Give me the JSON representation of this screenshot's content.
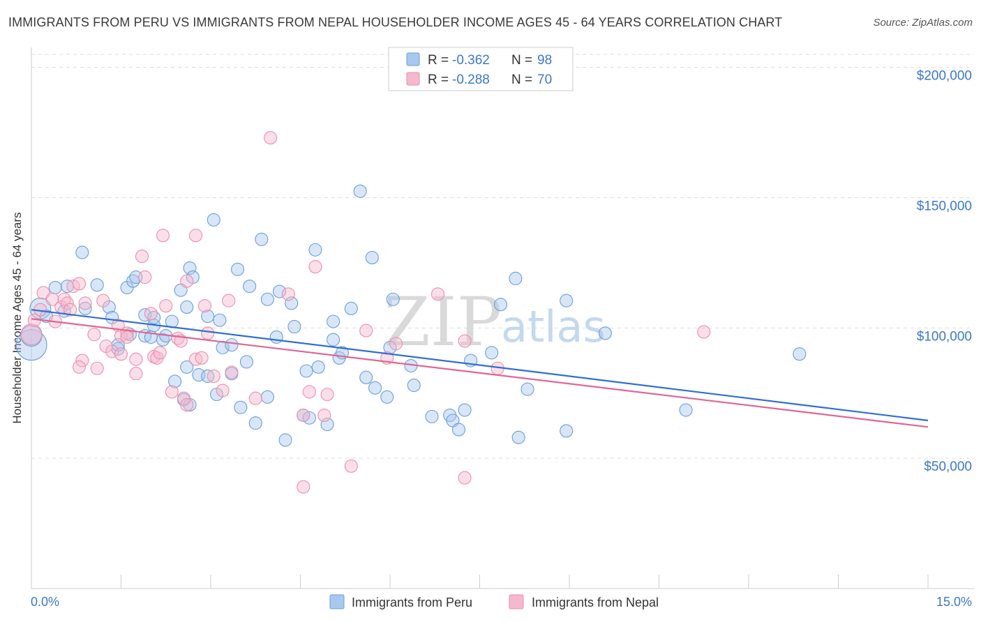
{
  "title": "IMMIGRANTS FROM PERU VS IMMIGRANTS FROM NEPAL HOUSEHOLDER INCOME AGES 45 - 64 YEARS CORRELATION CHART",
  "source": "Source: ZipAtlas.com",
  "watermark": {
    "zip": "ZIP",
    "atlas": "atlas"
  },
  "legend": {
    "peru": {
      "r_label": "R = ",
      "r_value": "-0.362",
      "n_label": "N = ",
      "n_value": "98"
    },
    "nepal": {
      "r_label": "R = ",
      "r_value": "-0.288",
      "n_label": "N = ",
      "n_value": "70"
    }
  },
  "bottom_legend": {
    "peru": "Immigrants from Peru",
    "nepal": "Immigrants from Nepal"
  },
  "colors": {
    "peru_fill": "#a8c8f0",
    "peru_stroke": "#6a9ed8",
    "peru_line": "#2f6fcf",
    "nepal_fill": "#f6b8cc",
    "nepal_stroke": "#ea8eab",
    "nepal_line": "#e06691",
    "axis_text": "#3b78c9",
    "grid": "#dddddd"
  },
  "chart_data": {
    "type": "scatter",
    "title": "IMMIGRANTS FROM PERU VS IMMIGRANTS FROM NEPAL HOUSEHOLDER INCOME AGES 45 - 64 YEARS CORRELATION CHART",
    "xlabel": "",
    "ylabel": "Householder Income Ages 45 - 64 years",
    "xlim": [
      0,
      15
    ],
    "ylim": [
      0,
      205000
    ],
    "x_tick_labels": [
      "0.0%",
      "15.0%"
    ],
    "y_ticks": [
      50000,
      100000,
      150000,
      200000
    ],
    "y_tick_labels": [
      "$50,000",
      "$100,000",
      "$150,000",
      "$200,000"
    ],
    "grid": true,
    "legend_placement": "top-center",
    "series": [
      {
        "name": "Immigrants from Peru",
        "r": -0.362,
        "n": 98,
        "trend": {
          "x": [
            0,
            15
          ],
          "y": [
            107000,
            64500
          ]
        },
        "points": [
          [
            0.0,
            93500,
            3
          ],
          [
            0.0,
            97000,
            2
          ],
          [
            0.15,
            107500,
            2
          ],
          [
            0.25,
            104500,
            1
          ],
          [
            0.4,
            115500,
            1
          ],
          [
            0.55,
            106500,
            1
          ],
          [
            0.6,
            116000,
            1
          ],
          [
            0.85,
            129000,
            1
          ],
          [
            0.9,
            107500,
            1
          ],
          [
            1.1,
            116500,
            1
          ],
          [
            1.3,
            108000,
            1
          ],
          [
            1.35,
            104000,
            1
          ],
          [
            1.45,
            92000,
            1
          ],
          [
            1.45,
            93500,
            1
          ],
          [
            1.6,
            115500,
            1
          ],
          [
            1.7,
            118000,
            1
          ],
          [
            1.75,
            119500,
            1
          ],
          [
            1.65,
            97500,
            1
          ],
          [
            1.9,
            97000,
            1
          ],
          [
            1.9,
            105000,
            1
          ],
          [
            2.05,
            101000,
            1
          ],
          [
            2.05,
            104000,
            1
          ],
          [
            2.0,
            96500,
            1
          ],
          [
            2.2,
            95500,
            1
          ],
          [
            2.25,
            97000,
            1
          ],
          [
            2.35,
            102500,
            1
          ],
          [
            2.5,
            114500,
            1
          ],
          [
            2.4,
            79500,
            1
          ],
          [
            2.55,
            72500,
            1
          ],
          [
            2.6,
            108000,
            1
          ],
          [
            2.65,
            123000,
            1
          ],
          [
            2.7,
            119500,
            1
          ],
          [
            2.6,
            85000,
            1
          ],
          [
            2.65,
            70500,
            1
          ],
          [
            2.8,
            82000,
            1
          ],
          [
            2.95,
            104500,
            1
          ],
          [
            2.95,
            81500,
            1
          ],
          [
            3.05,
            141500,
            1
          ],
          [
            3.1,
            74500,
            1
          ],
          [
            3.15,
            103000,
            1
          ],
          [
            3.2,
            92500,
            1
          ],
          [
            3.35,
            82500,
            1
          ],
          [
            3.35,
            93500,
            1
          ],
          [
            3.45,
            122500,
            1
          ],
          [
            3.5,
            69500,
            1
          ],
          [
            3.6,
            87000,
            1
          ],
          [
            3.65,
            116000,
            1
          ],
          [
            3.75,
            63500,
            1
          ],
          [
            3.85,
            134000,
            1
          ],
          [
            3.95,
            73500,
            1
          ],
          [
            3.95,
            111000,
            1
          ],
          [
            4.1,
            96500,
            1
          ],
          [
            4.15,
            114000,
            1
          ],
          [
            4.25,
            57000,
            1
          ],
          [
            4.35,
            109500,
            1
          ],
          [
            4.4,
            100500,
            1
          ],
          [
            4.55,
            66500,
            1
          ],
          [
            4.6,
            83500,
            1
          ],
          [
            4.65,
            65500,
            1
          ],
          [
            4.75,
            130000,
            1
          ],
          [
            4.8,
            85000,
            1
          ],
          [
            4.95,
            63000,
            1
          ],
          [
            5.05,
            95500,
            1
          ],
          [
            5.05,
            102500,
            1
          ],
          [
            5.15,
            88500,
            1
          ],
          [
            5.2,
            90500,
            1
          ],
          [
            5.35,
            107500,
            1
          ],
          [
            5.5,
            152500,
            1
          ],
          [
            5.6,
            81000,
            1
          ],
          [
            5.7,
            127000,
            1
          ],
          [
            5.75,
            77000,
            1
          ],
          [
            5.95,
            73500,
            1
          ],
          [
            6.0,
            92500,
            1
          ],
          [
            6.05,
            111000,
            1
          ],
          [
            6.35,
            85500,
            1
          ],
          [
            6.4,
            78000,
            1
          ],
          [
            6.7,
            66000,
            1
          ],
          [
            7.0,
            66500,
            1
          ],
          [
            7.05,
            64500,
            1
          ],
          [
            7.15,
            61000,
            1
          ],
          [
            7.25,
            68500,
            1
          ],
          [
            7.35,
            87500,
            1
          ],
          [
            7.7,
            90500,
            1
          ],
          [
            7.85,
            109000,
            1
          ],
          [
            8.1,
            119000,
            1
          ],
          [
            8.15,
            58000,
            1
          ],
          [
            8.3,
            76500,
            1
          ],
          [
            8.95,
            60500,
            1
          ],
          [
            8.95,
            110500,
            1
          ],
          [
            9.6,
            98000,
            1
          ],
          [
            10.95,
            68500,
            1
          ],
          [
            12.85,
            90000,
            1
          ]
        ]
      },
      {
        "name": "Immigrants from Nepal",
        "r": -0.288,
        "n": 70,
        "trend": {
          "x": [
            0,
            15
          ],
          "y": [
            103500,
            62000
          ]
        },
        "points": [
          [
            0.0,
            97500,
            2
          ],
          [
            0.05,
            103000,
            1
          ],
          [
            0.15,
            107000,
            1
          ],
          [
            0.2,
            113500,
            1
          ],
          [
            0.35,
            111000,
            1
          ],
          [
            0.4,
            102500,
            1
          ],
          [
            0.5,
            108000,
            1
          ],
          [
            0.55,
            111000,
            1
          ],
          [
            0.6,
            109500,
            1
          ],
          [
            0.65,
            107000,
            1
          ],
          [
            0.7,
            116000,
            1
          ],
          [
            0.8,
            117000,
            1
          ],
          [
            0.85,
            87500,
            1
          ],
          [
            0.8,
            85000,
            1
          ],
          [
            0.9,
            109500,
            1
          ],
          [
            1.05,
            97500,
            1
          ],
          [
            1.1,
            84500,
            1
          ],
          [
            1.2,
            110500,
            1
          ],
          [
            1.25,
            93000,
            1
          ],
          [
            1.35,
            91000,
            1
          ],
          [
            1.45,
            101000,
            1
          ],
          [
            1.5,
            97000,
            1
          ],
          [
            1.5,
            90000,
            1
          ],
          [
            1.6,
            98000,
            1
          ],
          [
            1.6,
            96500,
            1
          ],
          [
            1.75,
            88000,
            1
          ],
          [
            1.75,
            82500,
            1
          ],
          [
            1.85,
            127500,
            1
          ],
          [
            1.9,
            119500,
            1
          ],
          [
            2.0,
            105500,
            1
          ],
          [
            2.05,
            89000,
            1
          ],
          [
            2.1,
            88500,
            1
          ],
          [
            2.15,
            90500,
            1
          ],
          [
            2.2,
            135500,
            1
          ],
          [
            2.25,
            108500,
            1
          ],
          [
            2.35,
            75500,
            1
          ],
          [
            2.45,
            96000,
            1
          ],
          [
            2.5,
            95000,
            1
          ],
          [
            2.55,
            73000,
            1
          ],
          [
            2.6,
            70500,
            1
          ],
          [
            2.6,
            118000,
            1
          ],
          [
            2.75,
            88000,
            1
          ],
          [
            2.75,
            135500,
            1
          ],
          [
            2.85,
            88500,
            1
          ],
          [
            2.9,
            108500,
            1
          ],
          [
            2.95,
            98000,
            1
          ],
          [
            3.05,
            81500,
            1
          ],
          [
            3.2,
            76000,
            1
          ],
          [
            3.3,
            110500,
            1
          ],
          [
            3.35,
            83000,
            1
          ],
          [
            3.75,
            73000,
            1
          ],
          [
            4.0,
            173000,
            1
          ],
          [
            4.3,
            113000,
            1
          ],
          [
            4.55,
            66500,
            1
          ],
          [
            4.55,
            39000,
            1
          ],
          [
            4.65,
            75500,
            1
          ],
          [
            4.75,
            123500,
            1
          ],
          [
            4.9,
            66500,
            1
          ],
          [
            4.95,
            74500,
            1
          ],
          [
            5.35,
            47000,
            1
          ],
          [
            5.6,
            99000,
            1
          ],
          [
            5.95,
            88500,
            1
          ],
          [
            6.1,
            94000,
            1
          ],
          [
            6.8,
            113000,
            1
          ],
          [
            7.25,
            95000,
            1
          ],
          [
            7.25,
            42500,
            1
          ],
          [
            7.8,
            84500,
            1
          ],
          [
            11.25,
            98500,
            1
          ]
        ]
      }
    ]
  }
}
